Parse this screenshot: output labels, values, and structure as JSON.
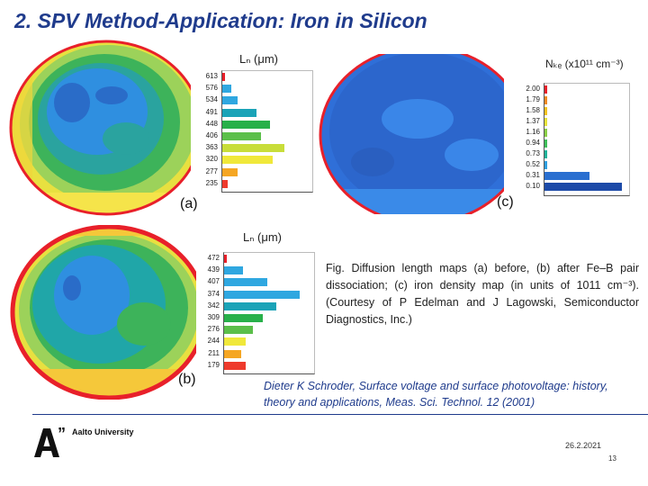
{
  "slide": {
    "title": "2. SPV Method-Application: Iron in Silicon",
    "caption": "Fig. Diffusion length maps (a) before, (b) after Fe–B pair dissociation; (c) iron density map (in units of 1011 cm⁻³). (Courtesy of P Edelman and J Lagowski, Semiconductor Diagnostics, Inc.)",
    "reference": "Dieter K Schroder, Surface voltage and surface photovoltage: history, theory and applications, Meas. Sci. Technol. 12 (2001)",
    "brand": "Aalto University",
    "date": "26.2.2021",
    "page": "13"
  },
  "panels": {
    "a": {
      "label": "(a)",
      "hist_title": "Lₙ (μm)",
      "ticks": [
        "613",
        "576",
        "534",
        "491",
        "448",
        "406",
        "363",
        "320",
        "277",
        "235"
      ],
      "bar_colors": [
        "#e8202a",
        "#2fa7e0",
        "#2fa7e0",
        "#1aa3b7",
        "#28b04a",
        "#5bbf4a",
        "#c8dd3a",
        "#f0e83a",
        "#f5a623",
        "#ee3a2c"
      ],
      "bar_values": [
        0.02,
        0.1,
        0.18,
        0.4,
        0.55,
        0.45,
        0.72,
        0.58,
        0.18,
        0.06
      ]
    },
    "b": {
      "label": "(b)",
      "hist_title": "Lₙ (μm)",
      "ticks": [
        "472",
        "439",
        "407",
        "374",
        "342",
        "309",
        "276",
        "244",
        "211",
        "179"
      ],
      "bar_colors": [
        "#e8202a",
        "#2fa7e0",
        "#2fa7e0",
        "#2fa7e0",
        "#1aa3b7",
        "#28b04a",
        "#5bbf4a",
        "#f0e83a",
        "#f5a623",
        "#ee3a2c"
      ],
      "bar_values": [
        0.02,
        0.22,
        0.5,
        0.88,
        0.6,
        0.45,
        0.33,
        0.25,
        0.2,
        0.25
      ]
    },
    "c": {
      "label": "(c)",
      "hist_title": "Nₖₑ (x10¹¹ cm⁻³)",
      "ticks": [
        "2.00",
        "1.79",
        "1.58",
        "1.37",
        "1.16",
        "0.94",
        "0.73",
        "0.52",
        "0.31",
        "0.10"
      ],
      "bar_colors": [
        "#e8202a",
        "#f08a24",
        "#f5c220",
        "#e6e23a",
        "#8bcf46",
        "#3fbf5a",
        "#20b39a",
        "#2f9fe0",
        "#2a6fd0",
        "#1c4aa8"
      ],
      "bar_values": [
        0.03,
        0.01,
        0.01,
        0.01,
        0.01,
        0.01,
        0.01,
        0.02,
        0.55,
        0.95
      ]
    }
  },
  "colors": {
    "title": "#1f3b8c",
    "accent": "#1f3b8c"
  }
}
